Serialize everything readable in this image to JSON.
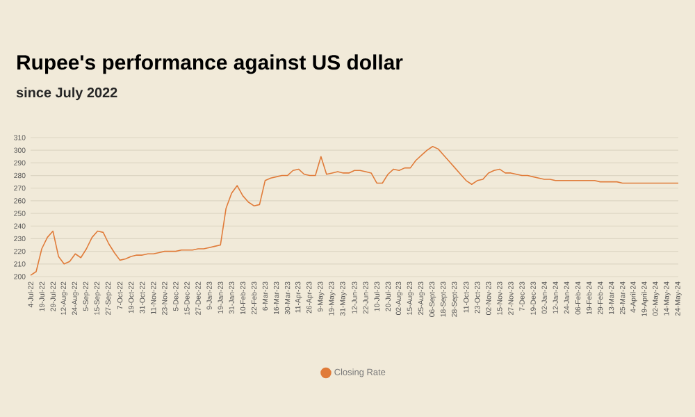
{
  "chart_data": {
    "type": "line",
    "title": "Rupee's performance against US dollar",
    "subtitle": "since July 2022",
    "categories": [
      "4-Jul-22",
      null,
      "19-Jul-22",
      null,
      "29-Jul-22",
      null,
      "12-Aug-22",
      null,
      "24-Aug-22",
      null,
      "5-Sep-22",
      null,
      "15-Sep-22",
      null,
      "27-Sep-22",
      null,
      "7-Oct-22",
      null,
      "19-Oct-22",
      null,
      "31-Oct-22",
      null,
      "11-Nov-22",
      null,
      "23-Nov-22",
      null,
      "5-Dec-22",
      null,
      "15-Dec-22",
      null,
      "27-Dec-22",
      null,
      "9-Jan-23",
      null,
      "19-Jan-23",
      null,
      "31-Jan-23",
      null,
      "10-Feb-23",
      null,
      "22-Feb-23",
      null,
      "6-Mar-23",
      null,
      "16-Mar-23",
      null,
      "30-Mar-23",
      null,
      "11-Apr-23",
      null,
      "26-Apr-23",
      null,
      "9-May-23",
      null,
      "19-May-23",
      null,
      "31-May-23",
      null,
      "12-Jun-23",
      null,
      "22-Jun-23",
      null,
      "10-Jul-23",
      null,
      "20-Jul-23",
      null,
      "02-Aug-23",
      null,
      "15-Aug-23",
      null,
      "25-Aug-23",
      null,
      "06-Sept-23",
      null,
      "18-Sept-23",
      null,
      "28-Sept-23",
      null,
      "11-Oct-23",
      null,
      "23-Oct-23",
      null,
      "02-Nov-23",
      null,
      "15-Nov-23",
      null,
      "27-Nov-23",
      null,
      "7-Dec-23",
      null,
      "19-Dec-23",
      null,
      "02-Jan-24",
      null,
      "12-Jan-24",
      null,
      "24-Jan-24",
      null,
      "06-Feb-24",
      null,
      "19-Feb-24",
      null,
      "29-Feb-24",
      null,
      "13-Mar-24",
      null,
      "25-Mar-24",
      null,
      "4-April-24",
      null,
      "19-April-24",
      null,
      "02-May-24",
      null,
      "14-May-24",
      null,
      "24-May-24"
    ],
    "series": [
      {
        "name": "Closing Rate",
        "color": "#e07b39",
        "values": [
          201,
          204,
          222,
          231,
          236,
          216,
          210,
          212,
          218,
          215,
          222,
          231,
          236,
          235,
          226,
          219,
          213,
          214,
          216,
          217,
          217,
          218,
          218,
          219,
          220,
          220,
          220,
          221,
          221,
          221,
          222,
          222,
          223,
          224,
          225,
          254,
          266,
          272,
          264,
          259,
          256,
          257,
          276,
          278,
          279,
          280,
          280,
          284,
          285,
          281,
          280,
          280,
          295,
          281,
          282,
          283,
          282,
          282,
          284,
          284,
          283,
          282,
          274,
          274,
          281,
          285,
          284,
          286,
          286,
          292,
          296,
          300,
          303,
          301,
          296,
          291,
          286,
          281,
          276,
          273,
          276,
          277,
          282,
          284,
          285,
          282,
          282,
          281,
          280,
          280,
          279,
          278,
          277,
          277,
          276,
          276,
          276,
          276,
          276,
          276,
          276,
          276,
          275,
          275,
          275,
          275,
          274,
          274,
          274,
          274,
          274,
          274,
          274,
          274,
          274,
          274,
          274
        ]
      }
    ],
    "ylim": [
      200,
      310
    ],
    "yticks": [
      200,
      210,
      220,
      230,
      240,
      250,
      260,
      270,
      280,
      290,
      300,
      310
    ],
    "grid": "y",
    "legend": "bottom"
  }
}
